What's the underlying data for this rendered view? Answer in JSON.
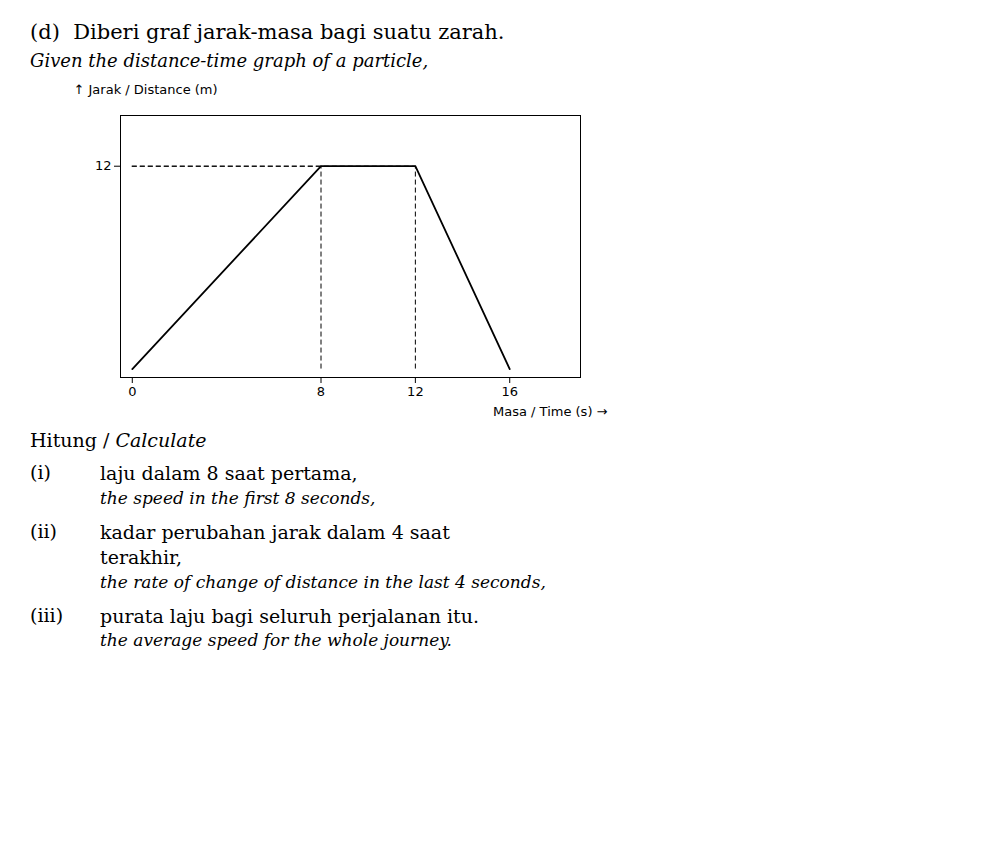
{
  "chart_data": {
    "type": "line",
    "title": "(d)  Diberi graf jarak-masa bagi suatu zarah.",
    "subtitle": "Given the distance-time graph of a particle,",
    "xlabel": "Masa / Time (s)",
    "ylabel": "Jarak / Distance (m)",
    "x": [
      0,
      8,
      12,
      16
    ],
    "values": [
      0,
      12,
      12,
      0
    ],
    "color": "black",
    "line_style": "solid",
    "xlim": [
      -0.5,
      19
    ],
    "ylim": [
      -0.5,
      15
    ],
    "xticks": [
      0,
      8,
      12,
      16
    ],
    "yticks": [
      12
    ],
    "grid": false,
    "annotations": [
      "Hitung / Calculate",
      "(i)",
      "laju dalam 8 saat pertama,",
      "the speed in the first 8 seconds,",
      "(ii)",
      "kadar perubahan jarak dalam 4 saat",
      "terakhir,",
      "the rate of change of distance in the last 4 seconds,",
      "(iii)",
      "purata laju bagi seluruh perjalanan itu.",
      "the average speed for the whole journey."
    ]
  }
}
